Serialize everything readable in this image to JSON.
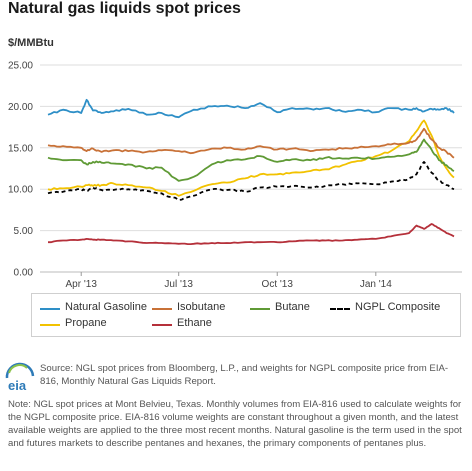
{
  "chart_data": {
    "type": "line",
    "title": "Natural gas liquids spot prices",
    "ylabel": "$/MMBtu",
    "ylim": [
      0,
      25
    ],
    "y_ticks": [
      "0.00",
      "5.00",
      "10.00",
      "15.00",
      "20.00",
      "25.00"
    ],
    "x_ticks": [
      "Apr '13",
      "Jul '13",
      "Oct '13",
      "Jan '14"
    ],
    "grid": true,
    "legend_position": "bottom",
    "x": [
      "2013-03-01",
      "2013-03-15",
      "2013-04-01",
      "2013-04-06",
      "2013-04-12",
      "2013-04-20",
      "2013-05-01",
      "2013-05-15",
      "2013-06-01",
      "2013-06-15",
      "2013-07-01",
      "2013-07-15",
      "2013-08-01",
      "2013-08-15",
      "2013-09-01",
      "2013-09-15",
      "2013-10-01",
      "2013-10-15",
      "2013-11-01",
      "2013-11-15",
      "2013-12-01",
      "2013-12-15",
      "2014-01-01",
      "2014-01-15",
      "2014-02-01",
      "2014-02-08",
      "2014-02-15",
      "2014-02-22",
      "2014-03-01",
      "2014-03-08",
      "2014-03-15"
    ],
    "series": [
      {
        "name": "Natural Gasoline",
        "color": "#2e8fc7",
        "values": [
          19.0,
          19.6,
          19.2,
          20.8,
          19.5,
          19.2,
          19.4,
          19.7,
          19.0,
          19.2,
          18.7,
          19.6,
          20.0,
          20.1,
          19.8,
          20.4,
          19.3,
          19.8,
          19.7,
          19.8,
          19.4,
          19.6,
          19.3,
          19.8,
          19.6,
          19.8,
          19.4,
          19.7,
          19.6,
          19.8,
          19.2
        ]
      },
      {
        "name": "Isobutane",
        "color": "#c87137",
        "values": [
          15.3,
          15.2,
          15.0,
          14.6,
          14.9,
          14.5,
          14.7,
          14.6,
          14.5,
          14.7,
          14.6,
          14.4,
          14.9,
          15.0,
          14.8,
          15.2,
          14.8,
          14.9,
          14.6,
          14.8,
          14.9,
          15.0,
          15.2,
          15.4,
          15.6,
          16.0,
          17.3,
          16.0,
          15.0,
          14.5,
          13.8
        ]
      },
      {
        "name": "Butane",
        "color": "#5f9a35",
        "values": [
          13.8,
          13.5,
          13.5,
          13.0,
          13.3,
          13.2,
          13.1,
          13.0,
          12.5,
          12.6,
          11.0,
          11.5,
          13.0,
          13.5,
          13.6,
          14.0,
          13.3,
          13.6,
          13.5,
          13.8,
          13.7,
          13.8,
          13.7,
          13.9,
          14.2,
          14.5,
          16.0,
          14.8,
          13.5,
          12.9,
          12.2
        ]
      },
      {
        "name": "NGPL Composite",
        "color": "#000000",
        "dashed": true,
        "values": [
          9.5,
          9.7,
          10.0,
          9.8,
          10.2,
          9.9,
          9.9,
          10.0,
          9.8,
          9.5,
          8.7,
          9.2,
          10.0,
          9.9,
          9.7,
          10.2,
          10.3,
          10.4,
          10.2,
          10.4,
          10.6,
          10.7,
          10.6,
          10.9,
          11.2,
          11.8,
          13.3,
          12.0,
          11.0,
          10.5,
          10.0
        ]
      },
      {
        "name": "Propane",
        "color": "#f2c200",
        "values": [
          10.0,
          10.1,
          10.3,
          10.5,
          10.4,
          10.5,
          10.7,
          10.5,
          10.2,
          9.8,
          9.2,
          9.8,
          10.6,
          10.8,
          11.3,
          11.8,
          11.8,
          12.0,
          12.2,
          12.4,
          12.9,
          13.4,
          14.0,
          14.6,
          15.8,
          17.0,
          18.3,
          16.5,
          14.0,
          12.5,
          11.4
        ]
      },
      {
        "name": "Ethane",
        "color": "#b5303a",
        "values": [
          3.6,
          3.8,
          3.9,
          4.0,
          3.9,
          3.9,
          3.8,
          3.7,
          3.5,
          3.5,
          3.4,
          3.4,
          3.5,
          3.5,
          3.6,
          3.6,
          3.6,
          3.7,
          3.8,
          3.8,
          3.8,
          3.9,
          4.0,
          4.3,
          4.7,
          5.6,
          5.2,
          5.8,
          5.3,
          4.7,
          4.3
        ]
      }
    ]
  },
  "legend": {
    "items": [
      {
        "name": "Natural Gasoline",
        "color": "#2e8fc7",
        "style": "solid"
      },
      {
        "name": "Isobutane",
        "color": "#c87137",
        "style": "solid"
      },
      {
        "name": "Butane",
        "color": "#5f9a35",
        "style": "solid"
      },
      {
        "name": "NGPL Composite",
        "color": "#000000",
        "style": "dashed"
      },
      {
        "name": "Propane",
        "color": "#f2c200",
        "style": "solid"
      },
      {
        "name": "Ethane",
        "color": "#b5303a",
        "style": "solid"
      }
    ]
  },
  "source_text": "Source: NGL spot prices from Bloomberg, L.P., and weights for NGPL composite price from EIA-816, Monthly Natural Gas Liquids Report.",
  "note_text": "Note: NGL spot prices at Mont Belvieu, Texas. Monthly volumes from EIA-816 used to calculate weights for the NGPL composite price. EIA-816 volume weights are constant throughout a given month, and the latest available weights are applied to the three most recent months. Natural gasoline is the term used in the spot and futures markets to describe pentanes and hexanes, the primary components of pentanes plus.",
  "logo_text": "eia"
}
